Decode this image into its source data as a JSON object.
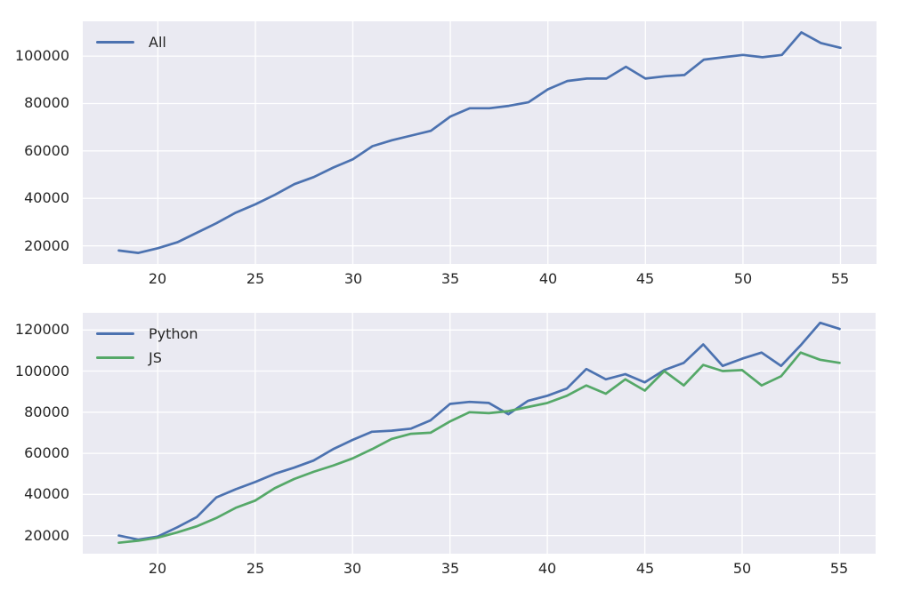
{
  "figure": {
    "background": "#ffffff",
    "axes_background": "#eaeaf2",
    "grid_color": "#ffffff",
    "tick_color": "#262626",
    "line_width": 2.7
  },
  "chart_data": [
    {
      "type": "line",
      "name": "top-chart",
      "x": [
        18,
        19,
        20,
        21,
        22,
        23,
        24,
        25,
        26,
        27,
        28,
        29,
        30,
        31,
        32,
        33,
        34,
        35,
        36,
        37,
        38,
        39,
        40,
        41,
        42,
        43,
        44,
        45,
        46,
        47,
        48,
        49,
        50,
        51,
        52,
        53,
        54,
        55
      ],
      "series": [
        {
          "name": "All",
          "color": "#4c72b0",
          "values": [
            18000,
            17000,
            19000,
            21500,
            25500,
            29500,
            34000,
            37500,
            41500,
            46000,
            49000,
            53000,
            56500,
            62000,
            64500,
            66500,
            68500,
            74500,
            78000,
            78000,
            79000,
            80500,
            86000,
            89500,
            90500,
            90500,
            95500,
            90500,
            91500,
            92000,
            98500,
            99500,
            100500,
            99500,
            100500,
            110000,
            105500,
            103500
          ]
        }
      ],
      "xlim": [
        16.15,
        56.85
      ],
      "ylim": [
        12350,
        114650
      ],
      "xticks": [
        20,
        25,
        30,
        35,
        40,
        45,
        50,
        55
      ],
      "xtick_labels": [
        "20",
        "25",
        "30",
        "35",
        "40",
        "45",
        "50",
        "55"
      ],
      "yticks": [
        20000,
        40000,
        60000,
        80000,
        100000
      ],
      "ytick_labels": [
        "20000",
        "40000",
        "60000",
        "80000",
        "100000"
      ],
      "grid": true,
      "legend_position": "upper left",
      "legend_labels": [
        "All"
      ]
    },
    {
      "type": "line",
      "name": "bottom-chart",
      "x": [
        18,
        19,
        20,
        21,
        22,
        23,
        24,
        25,
        26,
        27,
        28,
        29,
        30,
        31,
        32,
        33,
        34,
        35,
        36,
        37,
        38,
        39,
        40,
        41,
        42,
        43,
        44,
        45,
        46,
        47,
        48,
        49,
        50,
        51,
        52,
        53,
        54,
        55
      ],
      "series": [
        {
          "name": "Python",
          "color": "#4c72b0",
          "values": [
            20000,
            18000,
            19500,
            24000,
            29000,
            38500,
            42500,
            46000,
            50000,
            53000,
            56500,
            62000,
            66500,
            70500,
            71000,
            72000,
            76000,
            84000,
            85000,
            84500,
            79000,
            85500,
            88000,
            91500,
            101000,
            96000,
            98500,
            94500,
            100500,
            104000,
            113000,
            102500,
            106000,
            109000,
            102500,
            112500,
            123500,
            120500
          ]
        },
        {
          "name": "JS",
          "color": "#55a868",
          "values": [
            16500,
            17500,
            19000,
            21500,
            24500,
            28500,
            33500,
            37000,
            43000,
            47500,
            51000,
            54000,
            57500,
            62000,
            67000,
            69500,
            70000,
            75500,
            80000,
            79500,
            80500,
            82500,
            84500,
            88000,
            93000,
            89000,
            96000,
            90500,
            100000,
            93000,
            103000,
            100000,
            100500,
            93000,
            97500,
            109000,
            105500,
            104000
          ]
        }
      ],
      "xlim": [
        16.15,
        56.85
      ],
      "ylim": [
        11175,
        128325
      ],
      "xticks": [
        20,
        25,
        30,
        35,
        40,
        45,
        50,
        55
      ],
      "xtick_labels": [
        "20",
        "25",
        "30",
        "35",
        "40",
        "45",
        "50",
        "55"
      ],
      "yticks": [
        20000,
        40000,
        60000,
        80000,
        100000,
        120000
      ],
      "ytick_labels": [
        "20000",
        "40000",
        "60000",
        "80000",
        "100000",
        "120000"
      ],
      "grid": true,
      "legend_position": "upper left",
      "legend_labels": [
        "Python",
        "JS"
      ]
    }
  ]
}
